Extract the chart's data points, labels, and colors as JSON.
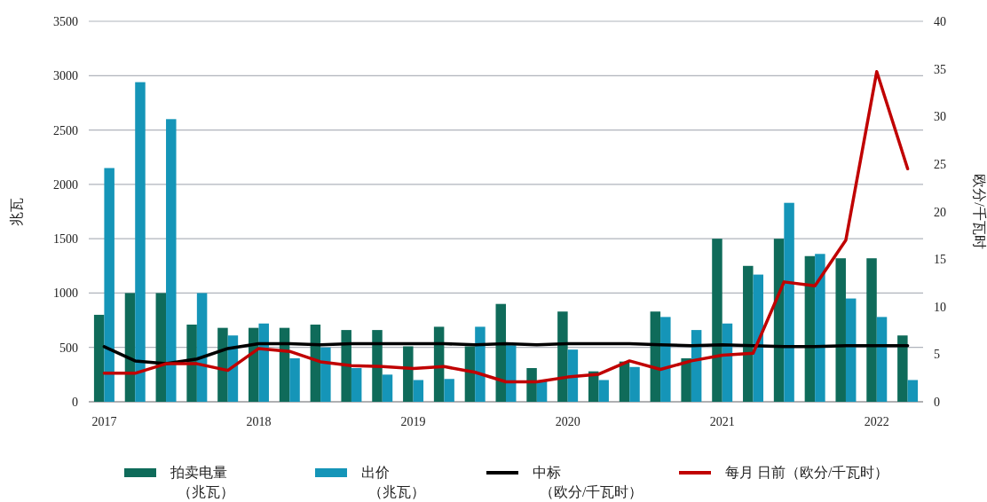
{
  "chart_data": {
    "type": "bar",
    "categories": [
      "2017",
      null,
      null,
      null,
      null,
      "2018",
      null,
      null,
      null,
      null,
      "2019",
      null,
      null,
      null,
      null,
      "2020",
      null,
      null,
      null,
      null,
      "2021",
      null,
      null,
      null,
      null,
      "2022",
      null
    ],
    "series": [
      {
        "name": "拍卖电量（兆瓦）",
        "color": "#0f6b5a",
        "values": [
          800,
          1000,
          1000,
          710,
          680,
          680,
          680,
          710,
          660,
          660,
          510,
          690,
          510,
          900,
          310,
          830,
          280,
          370,
          830,
          400,
          1500,
          1250,
          1500,
          1340,
          1320,
          1320,
          610
        ]
      },
      {
        "name": "出价（兆瓦）",
        "color": "#1595b8",
        "values": [
          2150,
          2940,
          2600,
          1000,
          610,
          720,
          400,
          500,
          310,
          250,
          200,
          210,
          690,
          520,
          190,
          480,
          200,
          320,
          780,
          660,
          720,
          1170,
          1830,
          1360,
          950,
          780,
          200
        ]
      },
      {
        "name": "中标（欧分/千瓦时）",
        "type": "line",
        "axis": "y2",
        "color": "#000000",
        "values": [
          5.8,
          4.3,
          4.0,
          4.5,
          5.6,
          6.1,
          6.1,
          6.0,
          6.1,
          6.1,
          6.1,
          6.1,
          6.0,
          6.1,
          6.0,
          6.1,
          6.1,
          6.1,
          6.0,
          5.9,
          6.0,
          5.9,
          5.8,
          5.8,
          5.9,
          5.9,
          5.9
        ]
      },
      {
        "name": "每月 日前（欧分/千瓦时）",
        "type": "line",
        "axis": "y2",
        "color": "#c00000",
        "values": [
          3.0,
          3.0,
          4.0,
          4.0,
          3.3,
          5.6,
          5.3,
          4.2,
          3.8,
          3.7,
          3.5,
          3.7,
          3.1,
          2.1,
          2.1,
          2.6,
          2.9,
          4.3,
          3.4,
          4.3,
          4.9,
          5.1,
          12.6,
          12.2,
          17.0,
          34.7,
          24.5
        ]
      }
    ],
    "ylabel": "兆瓦",
    "y2label": "欧分/千瓦时",
    "ylim": [
      0,
      3500
    ],
    "yticks": [
      0,
      500,
      1000,
      1500,
      2000,
      2500,
      3000,
      3500
    ],
    "y2lim": [
      0,
      40
    ],
    "y2ticks": [
      0,
      5,
      10,
      15,
      20,
      25,
      30,
      35,
      40
    ],
    "grid": "y",
    "legend": "bottom",
    "line_style": "solid",
    "marker": "none"
  }
}
